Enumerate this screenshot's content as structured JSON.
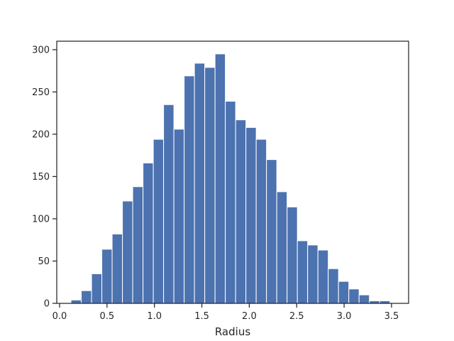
{
  "chart_data": {
    "type": "bar",
    "title": "",
    "xlabel": "Radius",
    "ylabel": "",
    "xlim": [
      -0.03,
      3.68
    ],
    "ylim": [
      0,
      310
    ],
    "grid": false,
    "bar_color": "#4c72b0",
    "bin_width": 0.1085,
    "bin_starts": [
      0.12,
      0.2285,
      0.337,
      0.4455,
      0.554,
      0.6625,
      0.771,
      0.8795,
      0.988,
      1.0965,
      1.205,
      1.3135,
      1.422,
      1.5305,
      1.639,
      1.7475,
      1.856,
      1.9645,
      2.073,
      2.1815,
      2.29,
      2.3985,
      2.507,
      2.6155,
      2.724,
      2.8325,
      2.941,
      3.0495,
      3.158,
      3.2665,
      3.375
    ],
    "values": [
      4,
      15,
      35,
      64,
      82,
      121,
      138,
      166,
      194,
      235,
      206,
      269,
      284,
      279,
      295,
      239,
      217,
      208,
      194,
      170,
      132,
      114,
      74,
      69,
      63,
      41,
      26,
      17,
      10,
      3,
      3
    ],
    "x_ticks": [
      0.0,
      0.5,
      1.0,
      1.5,
      2.0,
      2.5,
      3.0,
      3.5
    ],
    "x_tick_labels": [
      "0.0",
      "0.5",
      "1.0",
      "1.5",
      "2.0",
      "2.5",
      "3.0",
      "3.5"
    ],
    "y_ticks": [
      0,
      50,
      100,
      150,
      200,
      250,
      300
    ],
    "y_tick_labels": [
      "0",
      "50",
      "100",
      "150",
      "200",
      "250",
      "300"
    ]
  }
}
